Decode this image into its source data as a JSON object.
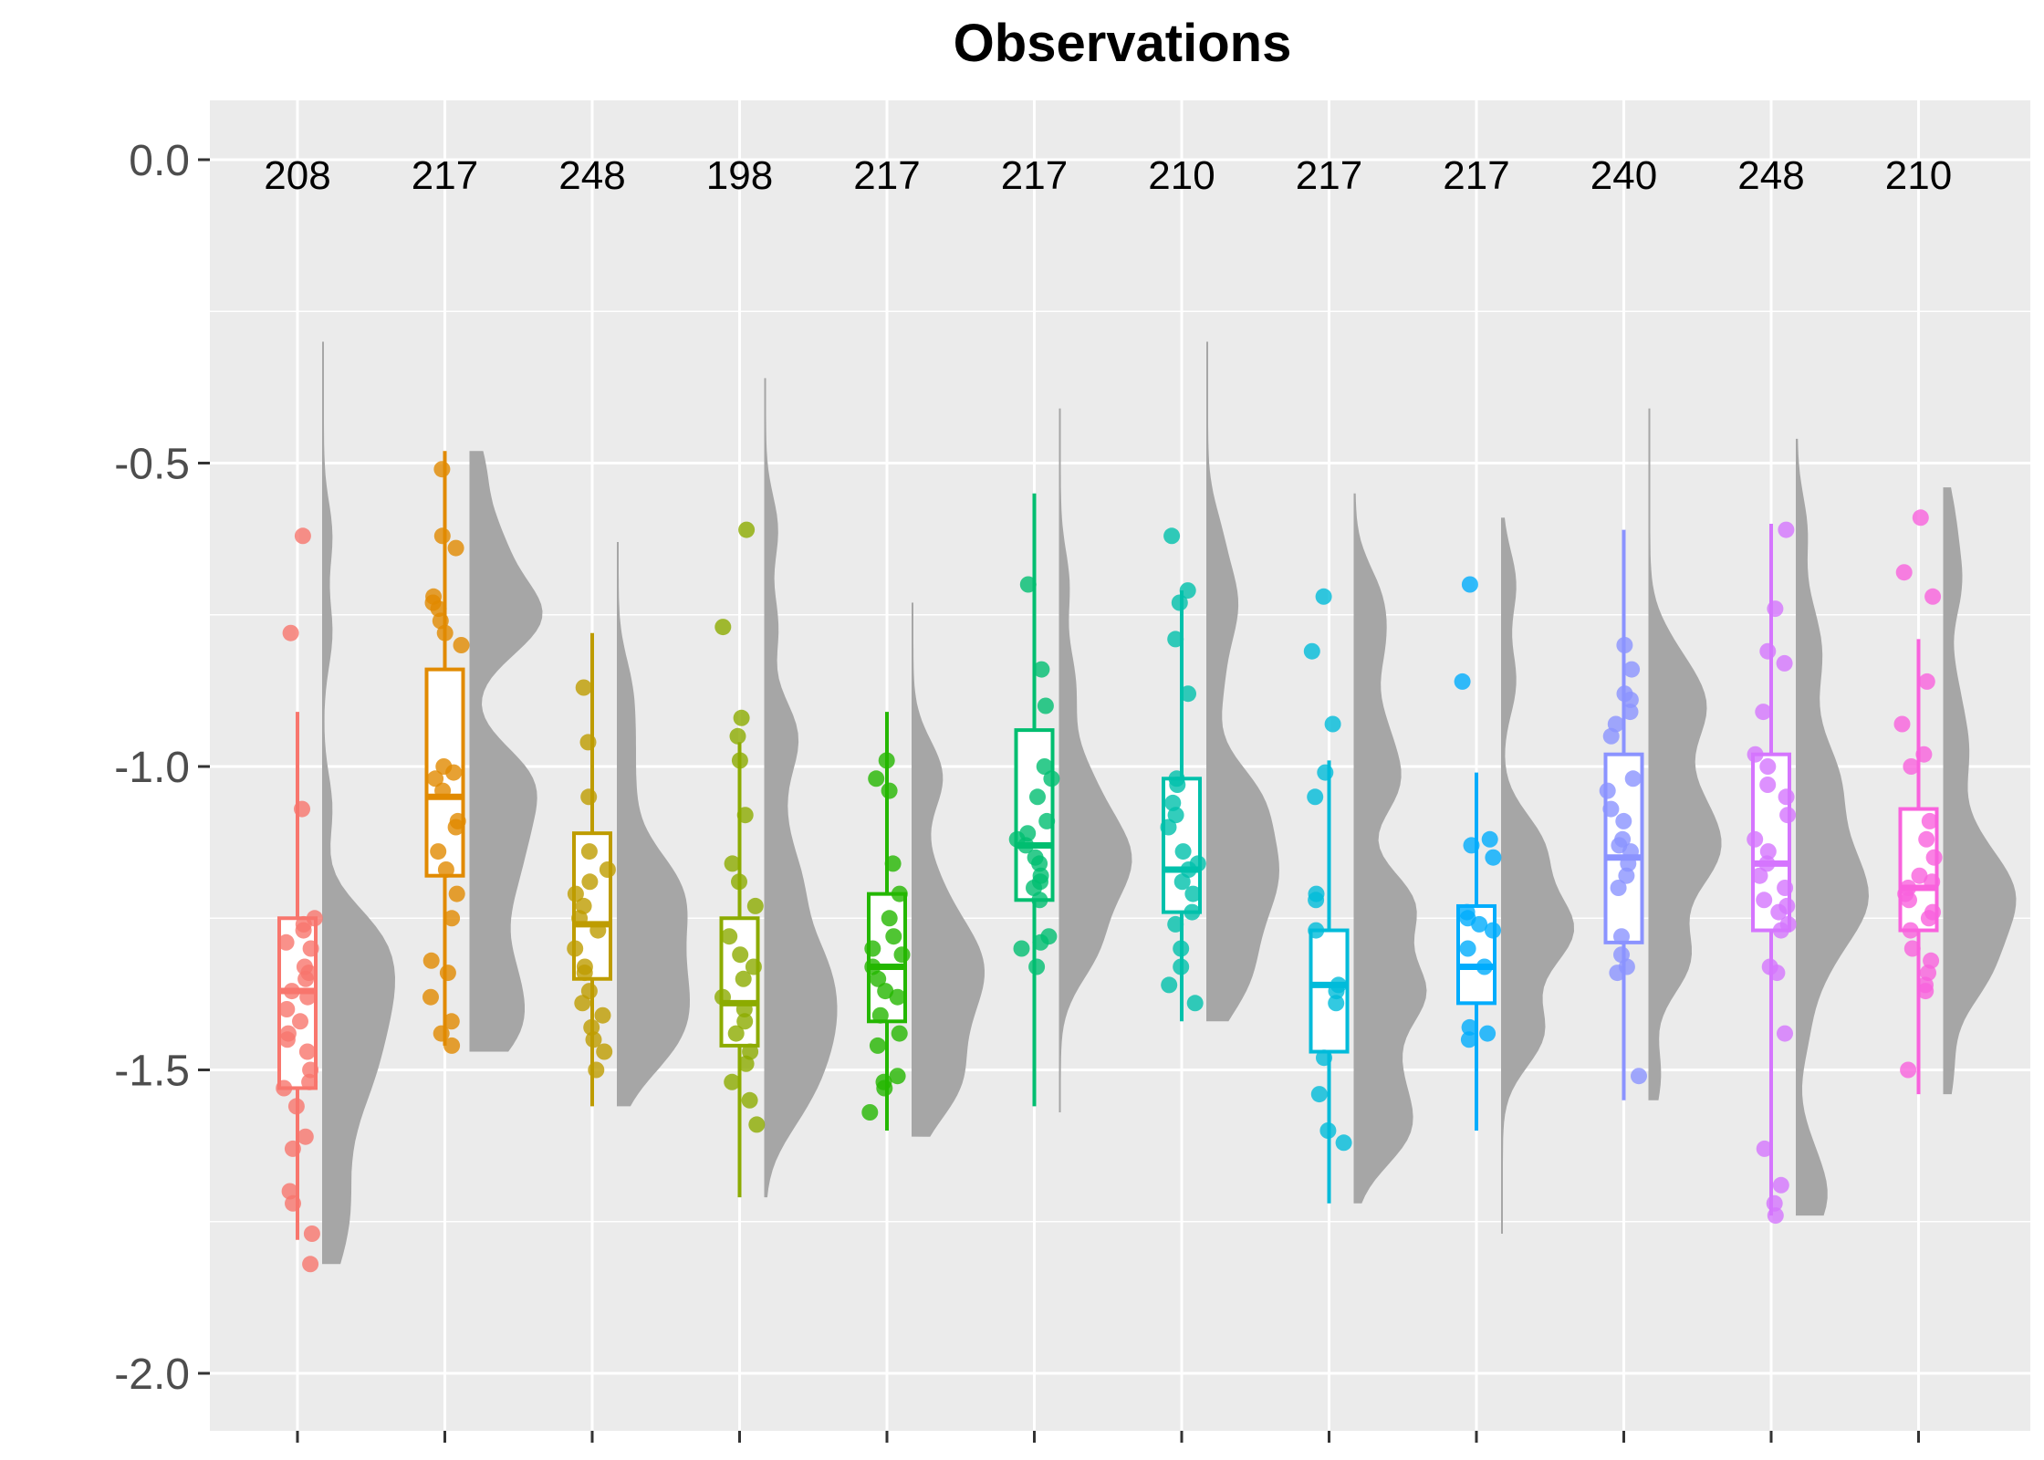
{
  "chart_data": {
    "type": "raincloud",
    "title": "Observations",
    "xlabel": "",
    "ylabel": "",
    "ylim": [
      -2.1,
      0.1
    ],
    "y_ticks": [
      0.0,
      -0.5,
      -1.0,
      -1.5,
      -2.0
    ],
    "y_tick_labels": [
      "0.0",
      "-0.5",
      "-1.0",
      "-1.5",
      "-2.0"
    ],
    "grid": true,
    "legend": "none",
    "x_tick_labels": [
      "",
      "",
      "",
      "",
      "",
      "",
      "",
      "",
      "",
      "",
      "",
      ""
    ],
    "series": [
      {
        "count": 208,
        "color": "#F8766D",
        "box": {
          "q1": -1.53,
          "median": -1.37,
          "q3": -1.25,
          "wlo": -1.78,
          "whi": -0.91
        },
        "density_range": [
          -1.82,
          -0.3
        ],
        "points": [
          -0.62,
          -0.78,
          -1.07,
          -1.25,
          -1.26,
          -1.27,
          -1.29,
          -1.3,
          -1.33,
          -1.34,
          -1.35,
          -1.37,
          -1.38,
          -1.4,
          -1.42,
          -1.44,
          -1.45,
          -1.47,
          -1.5,
          -1.52,
          -1.53,
          -1.56,
          -1.61,
          -1.63,
          -1.7,
          -1.72,
          -1.77,
          -1.82
        ]
      },
      {
        "count": 217,
        "color": "#E18A00",
        "box": {
          "q1": -1.18,
          "median": -1.05,
          "q3": -0.84,
          "wlo": -1.46,
          "whi": -0.48
        },
        "density_range": [
          -1.47,
          -0.48
        ],
        "points": [
          -0.51,
          -0.62,
          -0.64,
          -0.72,
          -0.73,
          -0.74,
          -0.76,
          -0.78,
          -0.8,
          -1.0,
          -1.01,
          -1.02,
          -1.04,
          -1.09,
          -1.1,
          -1.14,
          -1.17,
          -1.21,
          -1.25,
          -1.32,
          -1.34,
          -1.38,
          -1.42,
          -1.44,
          -1.46
        ]
      },
      {
        "count": 248,
        "color": "#BE9C00",
        "box": {
          "q1": -1.35,
          "median": -1.26,
          "q3": -1.11,
          "wlo": -1.56,
          "whi": -0.78
        },
        "density_range": [
          -1.56,
          -0.63
        ],
        "points": [
          -0.87,
          -0.96,
          -1.05,
          -1.14,
          -1.17,
          -1.19,
          -1.21,
          -1.23,
          -1.25,
          -1.27,
          -1.3,
          -1.33,
          -1.34,
          -1.37,
          -1.39,
          -1.41,
          -1.43,
          -1.45,
          -1.47,
          -1.5
        ]
      },
      {
        "count": 198,
        "color": "#8CAB00",
        "box": {
          "q1": -1.46,
          "median": -1.39,
          "q3": -1.25,
          "wlo": -1.71,
          "whi": -0.96
        },
        "density_range": [
          -1.71,
          -0.36
        ],
        "points": [
          -0.61,
          -0.77,
          -0.92,
          -0.95,
          -0.99,
          -1.08,
          -1.16,
          -1.19,
          -1.23,
          -1.28,
          -1.31,
          -1.33,
          -1.35,
          -1.38,
          -1.4,
          -1.42,
          -1.44,
          -1.47,
          -1.49,
          -1.52,
          -1.55,
          -1.59
        ]
      },
      {
        "count": 217,
        "color": "#24B700",
        "box": {
          "q1": -1.42,
          "median": -1.33,
          "q3": -1.21,
          "wlo": -1.6,
          "whi": -0.91
        },
        "density_range": [
          -1.61,
          -0.73
        ],
        "points": [
          -0.99,
          -1.02,
          -1.04,
          -1.16,
          -1.21,
          -1.25,
          -1.28,
          -1.3,
          -1.31,
          -1.33,
          -1.35,
          -1.37,
          -1.38,
          -1.41,
          -1.44,
          -1.46,
          -1.51,
          -1.52,
          -1.53,
          -1.57
        ]
      },
      {
        "count": 217,
        "color": "#00BE70",
        "box": {
          "q1": -1.22,
          "median": -1.13,
          "q3": -0.94,
          "wlo": -1.56,
          "whi": -0.55
        },
        "density_range": [
          -1.57,
          -0.41
        ],
        "points": [
          -0.7,
          -0.84,
          -0.9,
          -1.0,
          -1.02,
          -1.05,
          -1.09,
          -1.11,
          -1.12,
          -1.13,
          -1.15,
          -1.16,
          -1.18,
          -1.19,
          -1.2,
          -1.22,
          -1.28,
          -1.29,
          -1.3,
          -1.33
        ]
      },
      {
        "count": 210,
        "color": "#00C1AB",
        "box": {
          "q1": -1.24,
          "median": -1.17,
          "q3": -1.02,
          "wlo": -1.42,
          "whi": -0.71
        },
        "density_range": [
          -1.42,
          -0.3
        ],
        "points": [
          -0.62,
          -0.71,
          -0.73,
          -0.79,
          -0.88,
          -1.02,
          -1.03,
          -1.06,
          -1.08,
          -1.1,
          -1.14,
          -1.16,
          -1.17,
          -1.19,
          -1.21,
          -1.24,
          -1.26,
          -1.3,
          -1.33,
          -1.36,
          -1.39
        ]
      },
      {
        "count": 217,
        "color": "#00BBDA",
        "box": {
          "q1": -1.47,
          "median": -1.36,
          "q3": -1.27,
          "wlo": -1.72,
          "whi": -0.99
        },
        "density_range": [
          -1.72,
          -0.55
        ],
        "points": [
          -0.72,
          -0.81,
          -0.93,
          -1.01,
          -1.05,
          -1.21,
          -1.22,
          -1.27,
          -1.36,
          -1.37,
          -1.39,
          -1.48,
          -1.54,
          -1.6,
          -1.62
        ]
      },
      {
        "count": 217,
        "color": "#00ACFC",
        "box": {
          "q1": -1.39,
          "median": -1.33,
          "q3": -1.23,
          "wlo": -1.6,
          "whi": -1.01
        },
        "density_range": [
          -1.77,
          -0.59
        ],
        "points": [
          -0.7,
          -0.86,
          -1.12,
          -1.13,
          -1.15,
          -1.24,
          -1.25,
          -1.26,
          -1.27,
          -1.3,
          -1.33,
          -1.43,
          -1.44,
          -1.45
        ]
      },
      {
        "count": 240,
        "color": "#8B93FF",
        "box": {
          "q1": -1.29,
          "median": -1.15,
          "q3": -0.98,
          "wlo": -1.55,
          "whi": -0.61
        },
        "density_range": [
          -1.55,
          -0.41
        ],
        "points": [
          -0.8,
          -0.84,
          -0.88,
          -0.89,
          -0.91,
          -0.93,
          -0.95,
          -1.02,
          -1.04,
          -1.07,
          -1.09,
          -1.12,
          -1.13,
          -1.14,
          -1.16,
          -1.18,
          -1.2,
          -1.28,
          -1.31,
          -1.33,
          -1.34,
          -1.51
        ]
      },
      {
        "count": 248,
        "color": "#D575FE",
        "box": {
          "q1": -1.27,
          "median": -1.16,
          "q3": -0.98,
          "wlo": -1.74,
          "whi": -0.6
        },
        "density_range": [
          -1.74,
          -0.46
        ],
        "points": [
          -0.61,
          -0.74,
          -0.81,
          -0.83,
          -0.91,
          -0.98,
          -1.0,
          -1.03,
          -1.05,
          -1.08,
          -1.12,
          -1.14,
          -1.16,
          -1.18,
          -1.2,
          -1.22,
          -1.23,
          -1.24,
          -1.26,
          -1.27,
          -1.33,
          -1.34,
          -1.44,
          -1.63,
          -1.69,
          -1.72,
          -1.74
        ]
      },
      {
        "count": 210,
        "color": "#F962DD",
        "box": {
          "q1": -1.27,
          "median": -1.2,
          "q3": -1.07,
          "wlo": -1.54,
          "whi": -0.79
        },
        "density_range": [
          -1.54,
          -0.54
        ],
        "points": [
          -0.59,
          -0.68,
          -0.72,
          -0.86,
          -0.93,
          -0.98,
          -1.0,
          -1.09,
          -1.12,
          -1.15,
          -1.18,
          -1.19,
          -1.2,
          -1.21,
          -1.22,
          -1.24,
          -1.25,
          -1.27,
          -1.3,
          -1.32,
          -1.34,
          -1.36,
          -1.37,
          -1.5
        ]
      }
    ]
  }
}
